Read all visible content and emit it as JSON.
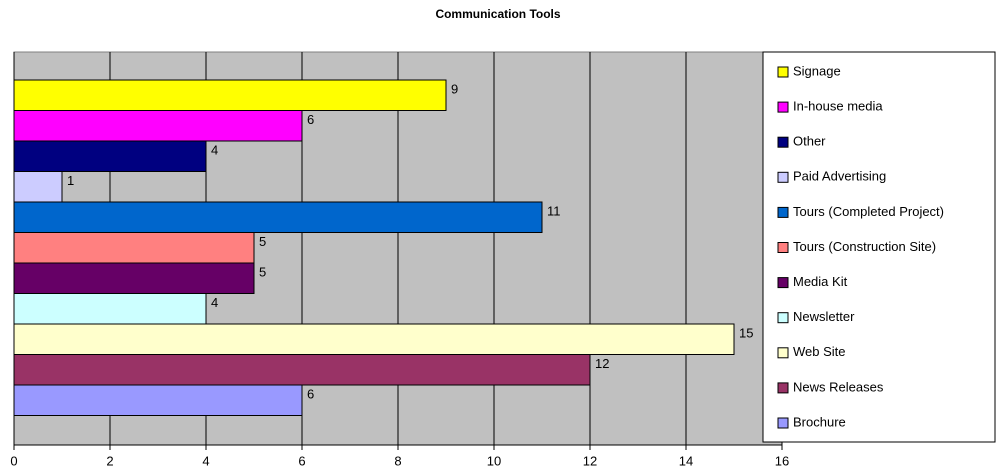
{
  "chart_data": {
    "type": "bar",
    "title": "Communication Tools",
    "series": [
      {
        "name": "Signage",
        "color": "#ffff00",
        "values": [
          9
        ]
      },
      {
        "name": "In-house media",
        "color": "#ff00ff",
        "values": [
          6
        ]
      },
      {
        "name": "Other",
        "color": "#000080",
        "values": [
          4
        ]
      },
      {
        "name": "Paid Advertising",
        "color": "#ccccff",
        "values": [
          1
        ]
      },
      {
        "name": "Tours (Completed Project)",
        "color": "#0066cc",
        "values": [
          11
        ]
      },
      {
        "name": "Tours (Construction Site)",
        "color": "#ff8080",
        "values": [
          5
        ]
      },
      {
        "name": "Media Kit",
        "color": "#660066",
        "values": [
          5
        ]
      },
      {
        "name": "Newsletter",
        "color": "#ccffff",
        "values": [
          4
        ]
      },
      {
        "name": "Web Site",
        "color": "#ffffcc",
        "values": [
          15
        ]
      },
      {
        "name": "News Releases",
        "color": "#993366",
        "values": [
          12
        ]
      },
      {
        "name": "Brochure",
        "color": "#9999ff",
        "values": [
          6
        ]
      }
    ],
    "xlim": [
      0,
      16
    ],
    "xticks": [
      0,
      2,
      4,
      6,
      8,
      10,
      12,
      14,
      16
    ],
    "grid": true,
    "plot_background": "#c0c0c0",
    "legend": "right"
  }
}
